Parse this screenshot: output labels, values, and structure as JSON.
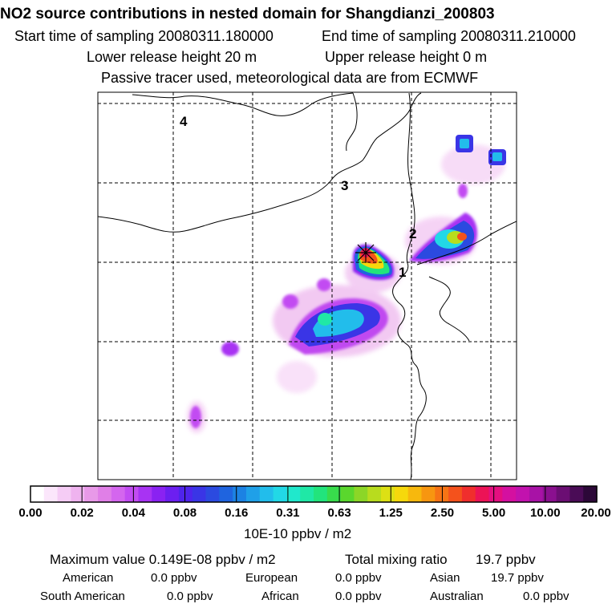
{
  "header": {
    "title": "NO2 source contributions in nested domain for Shangdianzi_200803",
    "start_label": "Start time of sampling 20080311.180000",
    "end_label": "End time of sampling 20080311.210000",
    "lower_release": "Lower release height   20 m",
    "upper_release": "Upper release height    0 m",
    "tracer_note": "Passive tracer used, meteorological data are from ECMWF"
  },
  "chart_data": {
    "type": "heatmap",
    "title": "NO2 source contributions in nested domain for Shangdianzi_200803",
    "region_labels": [
      "1",
      "2",
      "3",
      "4"
    ],
    "colorbar": {
      "tick_labels": [
        "0.00",
        "0.02",
        "0.04",
        "0.08",
        "0.16",
        "0.31",
        "0.63",
        "1.25",
        "2.50",
        "5.00",
        "10.00",
        "20.00"
      ],
      "ticks": [
        0,
        0.02,
        0.04,
        0.08,
        0.16,
        0.31,
        0.63,
        1.25,
        2.5,
        5.0,
        10.0,
        20.0
      ],
      "colors": [
        "#ffffff",
        "#fbe6fb",
        "#f5ccf5",
        "#efb3ef",
        "#e899e8",
        "#e07fe7",
        "#d466ee",
        "#c24cf2",
        "#a833f3",
        "#8a22f2",
        "#6c1ff0",
        "#4f24ec",
        "#3a35e6",
        "#2b4ae0",
        "#1f64df",
        "#1c82e3",
        "#1fa0e8",
        "#22bdeb",
        "#22d8e6",
        "#20e8cc",
        "#1fe8a6",
        "#22e47c",
        "#38dc4c",
        "#5ad72d",
        "#8cd627",
        "#b8dc1e",
        "#dde014",
        "#f6d80c",
        "#f7b80d",
        "#f79610",
        "#f67415",
        "#f4521c",
        "#f02e2d",
        "#ec1356",
        "#e40f80",
        "#d410a0",
        "#c212ae",
        "#a812a6",
        "#8a108f",
        "#6b0e73",
        "#4a0c56",
        "#2c0838"
      ],
      "unit": "10E-10 ppbv / m2"
    }
  },
  "footer": {
    "max_label": "Maximum value  0.149E-08 ppbv / m2",
    "total_label": "Total mixing ratio",
    "total_value": "19.7 ppbv",
    "regions": [
      {
        "name": "American",
        "value": "0.0 ppbv"
      },
      {
        "name": "European",
        "value": "0.0 ppbv"
      },
      {
        "name": "Asian",
        "value": "19.7 ppbv"
      },
      {
        "name": "South American",
        "value": "0.0 ppbv"
      },
      {
        "name": "African",
        "value": "0.0 ppbv"
      },
      {
        "name": "Australian",
        "value": "0.0 ppbv"
      }
    ]
  }
}
